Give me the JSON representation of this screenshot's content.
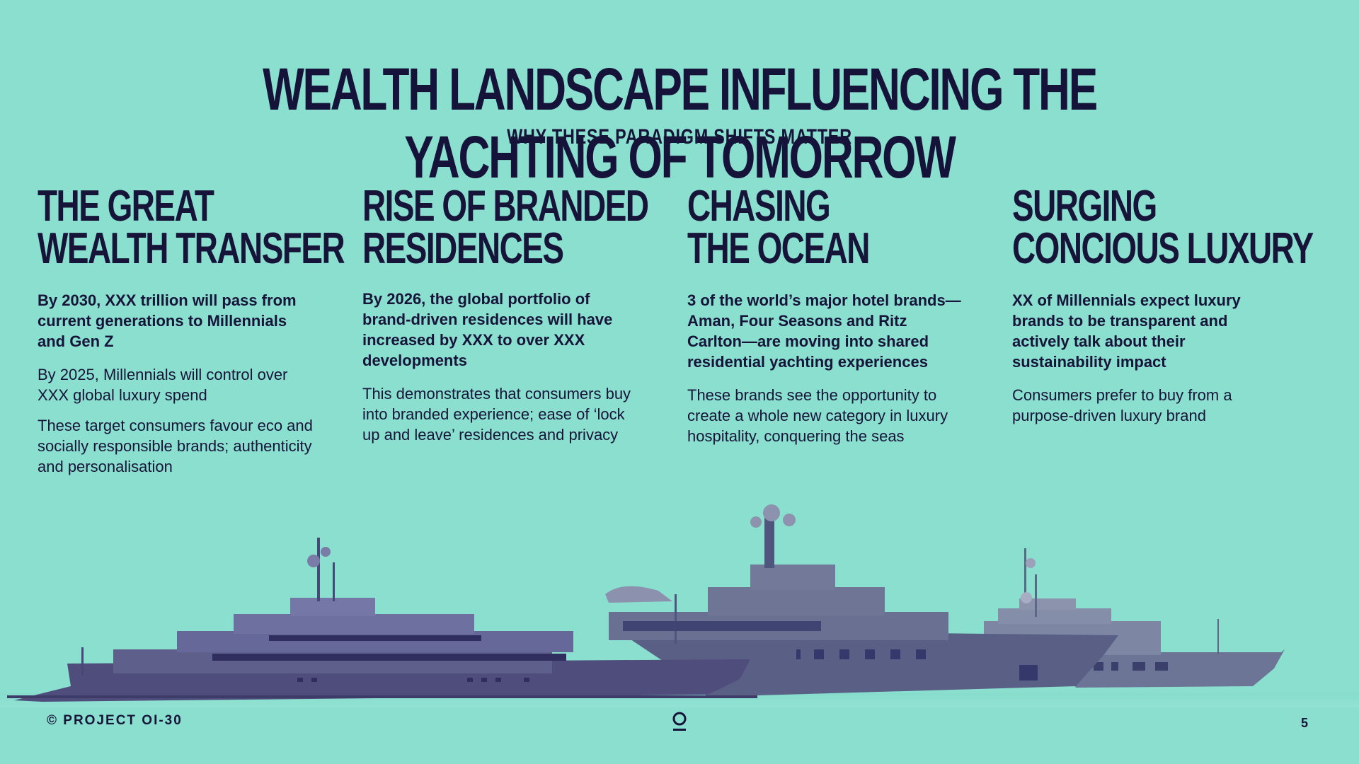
{
  "header": {
    "title": "WEALTH LANDSCAPE INFLUENCING THE YACHTING OF TOMORROW",
    "subtitle": "WHY THESE PARADIGM SHIFTS MATTER"
  },
  "columns": [
    {
      "heading_line1": "THE GREAT",
      "heading_line2": "WEALTH TRANSFER",
      "lead": "By 2030, XXX trillion will pass from current generations to Millennials and Gen Z",
      "body": [
        "By 2025, Millennials will control over XXX global luxury spend",
        "These target consumers favour eco and socially responsible brands; authenticity and personalisation"
      ]
    },
    {
      "heading_line1": "RISE OF BRANDED",
      "heading_line2": "RESIDENCES",
      "lead": "By 2026, the global portfolio of brand-driven residences will have increased by XXX to over XXX developments",
      "body": [
        "This demonstrates that consumers buy into branded experience; ease of ‘lock up and leave’ residences and privacy"
      ]
    },
    {
      "heading_line1": "CHASING",
      "heading_line2": "THE OCEAN",
      "lead": "3 of the world’s major hotel brands—Aman, Four Seasons and Ritz Carlton—are moving into shared residential yachting experiences",
      "body": [
        "These brands see the opportunity to create a whole new category in luxury hospitality, conquering the seas"
      ]
    },
    {
      "heading_line1": "SURGING",
      "heading_line2": "CONCIOUS LUXURY",
      "lead": "XX of Millennials expect luxury brands to be transparent and actively talk about their sustainability impact",
      "body": [
        "Consumers prefer to buy from a purpose-driven luxury brand"
      ]
    }
  ],
  "footer": {
    "copyright": "© PROJECT OI-30",
    "page_number": "5",
    "logo_icon": "project-logo-icon"
  },
  "colors": {
    "background": "#8adfcf",
    "text": "#17143a",
    "yacht": "#55587f"
  }
}
